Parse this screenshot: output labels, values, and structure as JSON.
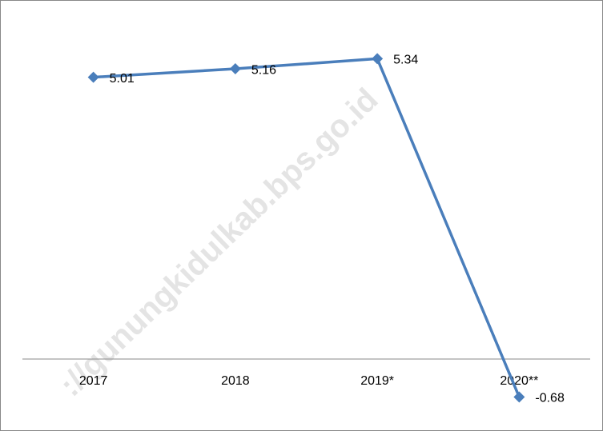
{
  "chart_data": {
    "type": "line",
    "categories": [
      "2017",
      "2018",
      "2019*",
      "2020**"
    ],
    "series": [
      {
        "color": "#4a7ebb",
        "values": [
          5.01,
          5.16,
          5.34,
          -0.68
        ]
      }
    ],
    "ylim": [
      -1,
      6
    ],
    "watermark": "://gunungkidulkab.bps.go.id"
  }
}
